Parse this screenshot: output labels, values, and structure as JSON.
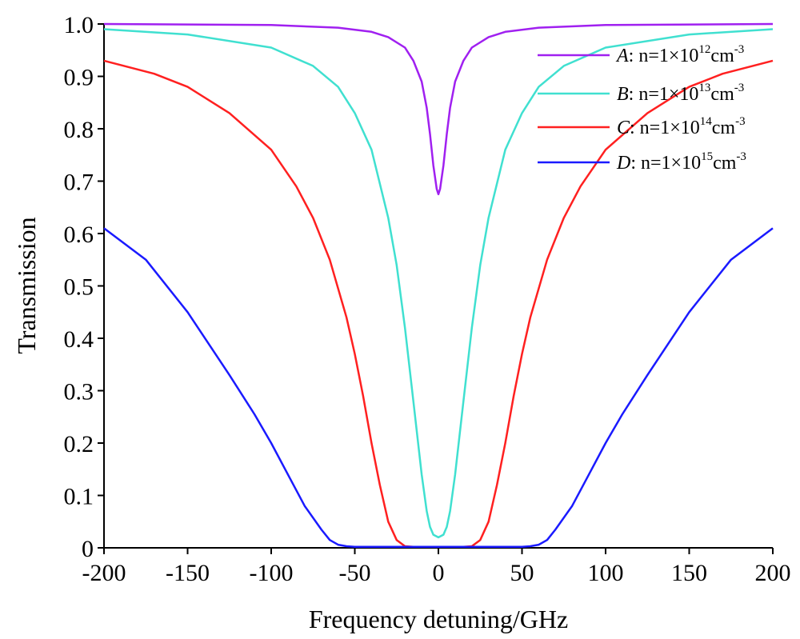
{
  "chart_data": {
    "type": "line",
    "xlabel": "Frequency detuning/GHz",
    "ylabel": "Transmission",
    "xlim": [
      -200,
      200
    ],
    "ylim": [
      0,
      1.0
    ],
    "x_ticks": [
      -200,
      -150,
      -100,
      -50,
      0,
      50,
      100,
      150,
      200
    ],
    "x_tick_labels": [
      "-200",
      "-150",
      "-100",
      "-50",
      "0",
      "50",
      "100",
      "150",
      "200"
    ],
    "y_ticks": [
      0,
      0.1,
      0.2,
      0.3,
      0.4,
      0.5,
      0.6,
      0.7,
      0.8,
      0.9,
      1.0
    ],
    "y_tick_labels": [
      "0",
      "0.1",
      "0.2",
      "0.3",
      "0.4",
      "0.5",
      "0.6",
      "0.7",
      "0.8",
      "0.9",
      "1.0"
    ],
    "grid": false,
    "legend_position": "top-right",
    "series": [
      {
        "letter": "A",
        "label_prefix": ": n=1×10",
        "exponent": "12",
        "unit": "cm",
        "unit_exp": "-3",
        "color": "#a020f0",
        "x": [
          -200,
          -100,
          -60,
          -40,
          -30,
          -20,
          -15,
          -10,
          -7,
          -5,
          -3,
          -1,
          0,
          1,
          3,
          5,
          7,
          10,
          15,
          20,
          30,
          40,
          60,
          100,
          200
        ],
        "y": [
          1.0,
          0.998,
          0.993,
          0.985,
          0.975,
          0.955,
          0.93,
          0.89,
          0.84,
          0.79,
          0.73,
          0.685,
          0.675,
          0.685,
          0.73,
          0.79,
          0.84,
          0.89,
          0.93,
          0.955,
          0.975,
          0.985,
          0.993,
          0.998,
          1.0
        ]
      },
      {
        "letter": "B",
        "label_prefix": ": n=1×10",
        "exponent": "13",
        "unit": "cm",
        "unit_exp": "-3",
        "color": "#40e0d0",
        "x": [
          -200,
          -150,
          -100,
          -75,
          -60,
          -50,
          -40,
          -30,
          -25,
          -20,
          -15,
          -10,
          -7,
          -5,
          -3,
          0,
          3,
          5,
          7,
          10,
          15,
          20,
          25,
          30,
          40,
          50,
          60,
          75,
          100,
          150,
          200
        ],
        "y": [
          0.99,
          0.98,
          0.955,
          0.92,
          0.88,
          0.83,
          0.76,
          0.63,
          0.54,
          0.42,
          0.28,
          0.14,
          0.07,
          0.04,
          0.025,
          0.02,
          0.025,
          0.04,
          0.07,
          0.14,
          0.28,
          0.42,
          0.54,
          0.63,
          0.76,
          0.83,
          0.88,
          0.92,
          0.955,
          0.98,
          0.99
        ]
      },
      {
        "letter": "C",
        "label_prefix": ": n=1×10",
        "exponent": "14",
        "unit": "cm",
        "unit_exp": "-3",
        "color": "#ff2020",
        "x": [
          -200,
          -170,
          -150,
          -125,
          -100,
          -85,
          -75,
          -65,
          -55,
          -50,
          -45,
          -40,
          -35,
          -30,
          -25,
          -20,
          -15,
          0,
          15,
          20,
          25,
          30,
          35,
          40,
          45,
          50,
          55,
          65,
          75,
          85,
          100,
          125,
          150,
          170,
          200
        ],
        "y": [
          0.93,
          0.905,
          0.88,
          0.83,
          0.76,
          0.69,
          0.63,
          0.55,
          0.44,
          0.37,
          0.29,
          0.2,
          0.12,
          0.05,
          0.015,
          0.003,
          0.002,
          0.002,
          0.002,
          0.003,
          0.015,
          0.05,
          0.12,
          0.2,
          0.29,
          0.37,
          0.44,
          0.55,
          0.63,
          0.69,
          0.76,
          0.83,
          0.88,
          0.905,
          0.93
        ]
      },
      {
        "letter": "D",
        "label_prefix": ": n=1×10",
        "exponent": "15",
        "unit": "cm",
        "unit_exp": "-3",
        "color": "#1a1aff",
        "x": [
          -200,
          -175,
          -150,
          -125,
          -110,
          -100,
          -90,
          -80,
          -70,
          -65,
          -60,
          -55,
          -50,
          0,
          50,
          55,
          60,
          65,
          70,
          80,
          90,
          100,
          110,
          125,
          150,
          175,
          200
        ],
        "y": [
          0.61,
          0.55,
          0.45,
          0.33,
          0.255,
          0.2,
          0.14,
          0.08,
          0.035,
          0.015,
          0.006,
          0.003,
          0.002,
          0.002,
          0.002,
          0.003,
          0.006,
          0.015,
          0.035,
          0.08,
          0.14,
          0.2,
          0.255,
          0.33,
          0.45,
          0.55,
          0.61
        ]
      }
    ]
  }
}
